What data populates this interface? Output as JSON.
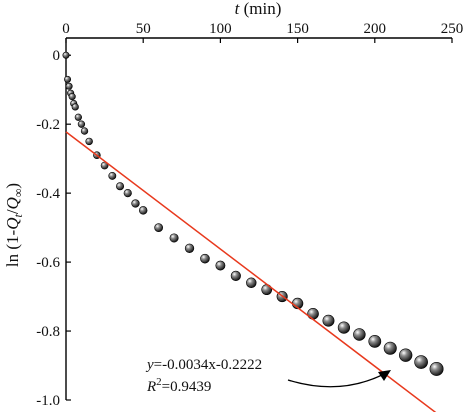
{
  "chart_data": {
    "type": "scatter",
    "title": "",
    "xlabel": {
      "italic": "t",
      "rest": " (min)"
    },
    "ylabel": {
      "prefix": "ln (1-",
      "q1": "Q",
      "s1": "t",
      "slash": "/",
      "q2": "Q",
      "s2": "∞",
      "suffix": ")"
    },
    "xlim": [
      0,
      250
    ],
    "ylim": [
      -1.0,
      0.05
    ],
    "x_axis_position": "top",
    "x_ticks": [
      0,
      50,
      100,
      150,
      200,
      250
    ],
    "x_tick_labels": [
      "0",
      "50",
      "100",
      "150",
      "200",
      "250"
    ],
    "y_ticks": [
      0,
      -0.2,
      -0.4,
      -0.6,
      -0.8,
      -1.0
    ],
    "y_tick_labels": [
      "0",
      "-0.2",
      "-0.4",
      "-0.6",
      "-0.8",
      "-1.0"
    ],
    "grid": false,
    "series": [
      {
        "kind": "points",
        "marker": "sphere",
        "x": [
          0,
          1,
          2,
          3,
          4,
          5,
          6,
          8,
          10,
          12,
          15,
          20,
          25,
          30,
          35,
          40,
          45,
          50,
          60,
          70,
          80,
          90,
          100,
          110,
          120,
          130,
          140,
          150,
          160,
          170,
          180,
          190,
          200,
          210,
          220,
          230,
          240
        ],
        "y": [
          0,
          -0.07,
          -0.09,
          -0.11,
          -0.12,
          -0.14,
          -0.15,
          -0.18,
          -0.2,
          -0.22,
          -0.25,
          -0.29,
          -0.32,
          -0.35,
          -0.38,
          -0.4,
          -0.43,
          -0.45,
          -0.5,
          -0.53,
          -0.56,
          -0.59,
          -0.61,
          -0.64,
          -0.66,
          -0.68,
          -0.7,
          -0.72,
          -0.75,
          -0.77,
          -0.79,
          -0.81,
          -0.83,
          -0.85,
          -0.87,
          -0.89,
          -0.91
        ]
      },
      {
        "kind": "fit-line",
        "slope": -0.0034,
        "intercept": -0.2222,
        "x_range": [
          0,
          243
        ],
        "color": "#e8391d"
      }
    ],
    "annotation": {
      "eq_var": "y",
      "eq_rest": "=-0.0034x-0.2222",
      "r2_var": "R",
      "r2_sup": "2",
      "r2_rest": "=0.9439"
    }
  }
}
